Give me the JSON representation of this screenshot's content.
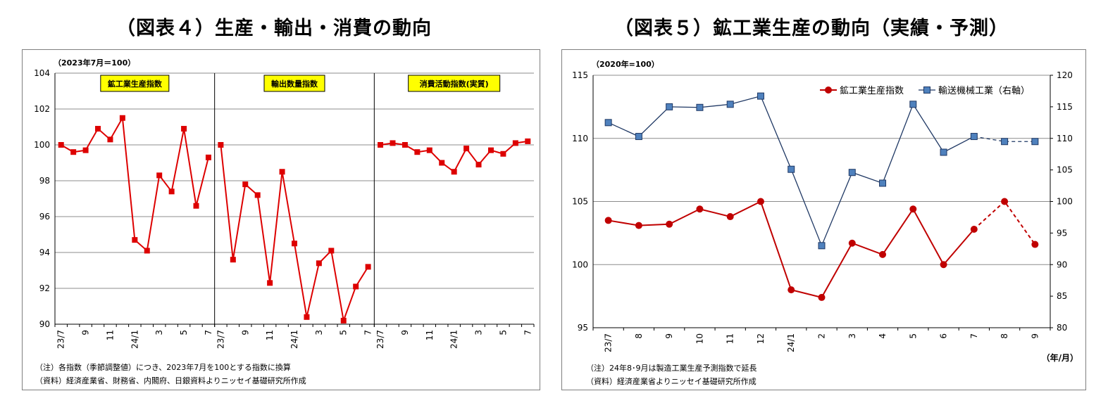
{
  "figures": {
    "left_title": "（図表４）生産・輸出・消費の動向",
    "right_title": "（図表５）鉱工業生産の動向（実績・予測）"
  },
  "colors": {
    "red": "#dd0000",
    "darkred": "#c00000",
    "navy": "#1f3864",
    "blue": "#4f81bd",
    "label_bg": "#ffff00"
  },
  "chart_data": [
    {
      "type": "line",
      "unit_label": "（2023年7月＝100）",
      "ylim": [
        90,
        104
      ],
      "yticks": [
        90,
        92,
        94,
        96,
        98,
        100,
        102,
        104
      ],
      "panels": [
        {
          "name": "鉱工業生産指数",
          "x": [
            "23/7",
            "8",
            "9",
            "10",
            "11",
            "12",
            "24/1",
            "2",
            "3",
            "4",
            "5",
            "6",
            "7"
          ],
          "x_tick_labels": [
            "23/7",
            "",
            "9",
            "",
            "11",
            "",
            "24/1",
            "",
            "3",
            "",
            "5",
            "",
            "7"
          ],
          "values": [
            100.0,
            99.6,
            99.7,
            100.9,
            100.3,
            101.5,
            94.7,
            94.1,
            98.3,
            97.4,
            100.9,
            96.6,
            99.3
          ]
        },
        {
          "name": "輸出数量指数",
          "x": [
            "23/7",
            "8",
            "9",
            "10",
            "11",
            "12",
            "24/1",
            "2",
            "3",
            "4",
            "5",
            "6",
            "7"
          ],
          "x_tick_labels": [
            "23/7",
            "",
            "9",
            "",
            "11",
            "",
            "24/1",
            "",
            "3",
            "",
            "5",
            "",
            "7"
          ],
          "values": [
            100.0,
            93.6,
            97.8,
            97.2,
            92.3,
            98.5,
            94.5,
            90.4,
            93.4,
            94.1,
            90.2,
            92.1,
            93.2
          ]
        },
        {
          "name": "消費活動指数(実質)",
          "x": [
            "23/7",
            "8",
            "9",
            "10",
            "11",
            "12",
            "24/1",
            "2",
            "3",
            "4",
            "5",
            "6",
            "7"
          ],
          "x_tick_labels": [
            "23/7",
            "",
            "9",
            "",
            "11",
            "",
            "24/1",
            "",
            "3",
            "",
            "5",
            "",
            "7"
          ],
          "values": [
            100.0,
            100.1,
            100.0,
            99.6,
            99.7,
            99.0,
            98.5,
            99.8,
            98.9,
            99.7,
            99.5,
            100.1,
            100.2
          ]
        }
      ],
      "notes": [
        "（注）各指数（季節調整値）につき、2023年7月を100とする指数に換算",
        "（資料）経済産業省、財務省、内閣府、日銀資料よりニッセイ基礎研究所作成"
      ]
    },
    {
      "type": "line",
      "unit_label": "（2020年=100）",
      "x": [
        "23/7",
        "8",
        "9",
        "10",
        "11",
        "12",
        "24/1",
        "2",
        "3",
        "4",
        "5",
        "6",
        "7",
        "8",
        "9"
      ],
      "xlabel": "（年/月）",
      "ylim_left": [
        95,
        115
      ],
      "yticks_left": [
        95,
        100,
        105,
        110,
        115
      ],
      "ylim_right": [
        80,
        120
      ],
      "yticks_right": [
        80,
        85,
        90,
        95,
        100,
        105,
        110,
        115,
        120
      ],
      "legend_position": "top-right",
      "series": [
        {
          "name": "鉱工業生産指数",
          "axis": "left",
          "marker": "circle",
          "values": [
            103.5,
            103.1,
            103.2,
            104.4,
            103.8,
            105.0,
            98.0,
            97.4,
            101.7,
            100.8,
            104.4,
            100.0,
            102.8,
            105.0,
            101.6
          ],
          "forecast_from_index": 12
        },
        {
          "name": "輸送機械工業（右軸）",
          "axis": "right",
          "marker": "square",
          "values": [
            112.5,
            110.3,
            115.0,
            114.9,
            115.4,
            116.7,
            105.1,
            93.0,
            104.6,
            102.9,
            115.4,
            107.8,
            110.3,
            109.5,
            109.5
          ],
          "forecast_from_index": 12
        }
      ],
      "notes": [
        "（注）24年8･9月は製造工業生産予測指数で延長",
        "（資料）経済産業省よりニッセイ基礎研究所作成"
      ]
    }
  ]
}
